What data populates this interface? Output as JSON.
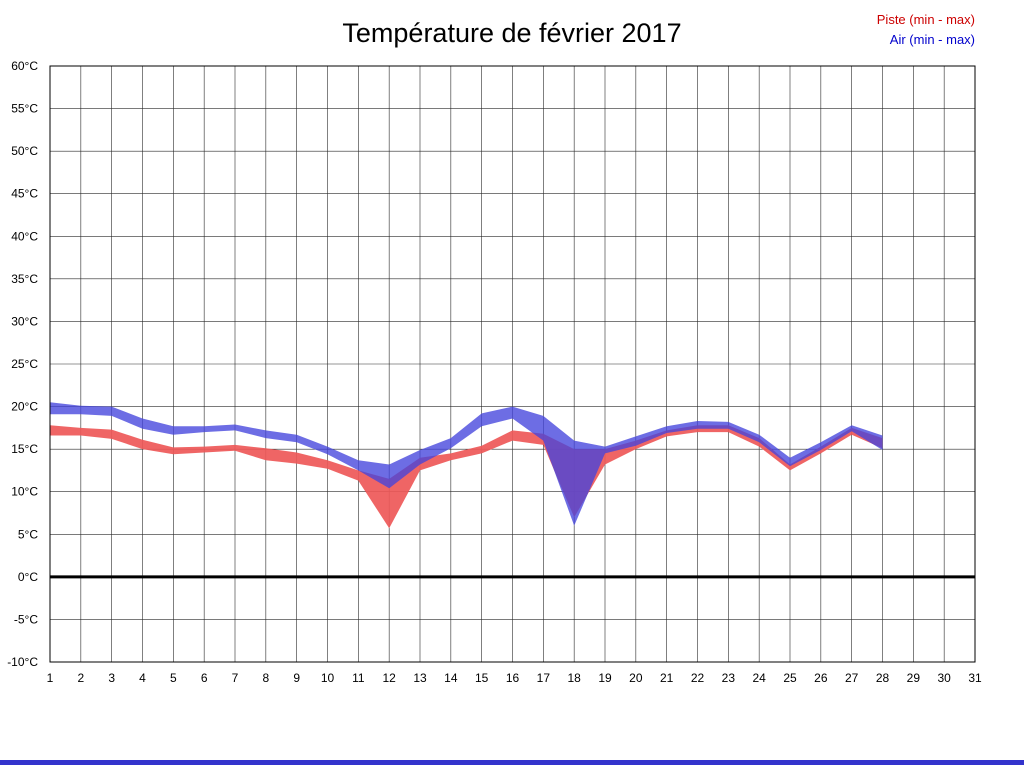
{
  "page": {
    "title": "Température de février 2017"
  },
  "legend": {
    "piste": {
      "label": "Piste (min - max)",
      "color": "#cc0000"
    },
    "air": {
      "label": "Air (min - max)",
      "color": "#0000cc"
    }
  },
  "colors": {
    "piste_fill": "#ee5858",
    "air_fill": "#4444dd",
    "grid": "#2a2a2a",
    "zero_line": "#000000",
    "plot_border": "#000000",
    "bottom_bar": "#3333cc"
  },
  "chart_data": {
    "type": "area",
    "title": "Température de février 2017",
    "xlabel": "",
    "ylabel": "",
    "xlim": [
      1,
      31
    ],
    "ylim": [
      -10,
      60
    ],
    "ytick_step": 5,
    "ytick_suffix": "°C",
    "grid": true,
    "legend_position": "top-right",
    "x": [
      1,
      2,
      3,
      4,
      5,
      6,
      7,
      8,
      9,
      10,
      11,
      12,
      13,
      14,
      15,
      16,
      17,
      18,
      19,
      20,
      21,
      22,
      23,
      24,
      25,
      26,
      27,
      28
    ],
    "series": [
      {
        "name": "Piste (min - max)",
        "fill": "#ee5858",
        "opacity": 0.92,
        "max": [
          17.8,
          17.5,
          17.3,
          16.1,
          15.2,
          15.3,
          15.5,
          15.1,
          14.6,
          13.7,
          12.5,
          11.5,
          14.0,
          14.5,
          15.4,
          17.2,
          16.8,
          15.0,
          15.0,
          16.0,
          17.2,
          17.8,
          17.8,
          16.3,
          13.2,
          15.3,
          17.5,
          16.3
        ],
        "min": [
          16.6,
          16.6,
          16.2,
          15.0,
          14.4,
          14.6,
          14.8,
          13.7,
          13.3,
          12.7,
          11.3,
          5.7,
          12.5,
          13.7,
          14.5,
          16.0,
          15.5,
          7.0,
          13.2,
          15.0,
          16.5,
          17.0,
          17.0,
          15.3,
          12.5,
          14.5,
          16.7,
          15.1
        ]
      },
      {
        "name": "Air (min - max)",
        "fill": "#4444dd",
        "opacity": 0.78,
        "max": [
          20.5,
          20.1,
          20.0,
          18.6,
          17.7,
          17.7,
          17.9,
          17.2,
          16.7,
          15.3,
          13.7,
          13.2,
          14.9,
          16.3,
          19.2,
          20.0,
          18.9,
          16.0,
          15.3,
          16.5,
          17.7,
          18.3,
          18.2,
          16.7,
          14.0,
          15.8,
          17.8,
          16.6
        ],
        "min": [
          19.1,
          19.1,
          18.9,
          17.4,
          16.7,
          17.0,
          17.2,
          16.3,
          15.8,
          14.4,
          12.5,
          10.4,
          13.2,
          15.1,
          17.7,
          18.6,
          16.0,
          6.0,
          14.5,
          15.4,
          16.9,
          17.4,
          17.4,
          15.8,
          13.0,
          14.9,
          17.1,
          14.9
        ]
      }
    ]
  }
}
